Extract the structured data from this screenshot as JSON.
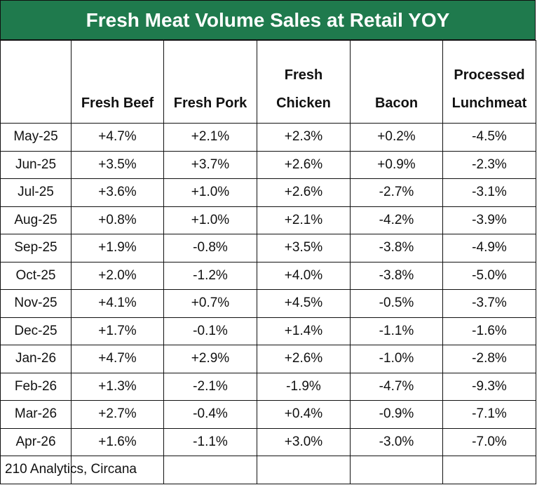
{
  "chart_data": {
    "type": "table",
    "title": "Fresh Meat Volume Sales at Retail YOY",
    "columns": [
      "",
      "Fresh Beef",
      "Fresh Pork",
      "Fresh Chicken",
      "Bacon",
      "Processed Lunchmeat"
    ],
    "rows": [
      {
        "month": "May-25",
        "values": [
          "+4.7%",
          "+2.1%",
          "+2.3%",
          "+0.2%",
          "-4.5%"
        ]
      },
      {
        "month": "Jun-25",
        "values": [
          "+3.5%",
          "+3.7%",
          "+2.6%",
          "+0.9%",
          "-2.3%"
        ]
      },
      {
        "month": "Jul-25",
        "values": [
          "+3.6%",
          "+1.0%",
          "+2.6%",
          "-2.7%",
          "-3.1%"
        ]
      },
      {
        "month": "Aug-25",
        "values": [
          "+0.8%",
          "+1.0%",
          "+2.1%",
          "-4.2%",
          "-3.9%"
        ]
      },
      {
        "month": "Sep-25",
        "values": [
          "+1.9%",
          "-0.8%",
          "+3.5%",
          "-3.8%",
          "-4.9%"
        ]
      },
      {
        "month": "Oct-25",
        "values": [
          "+2.0%",
          "-1.2%",
          "+4.0%",
          "-3.8%",
          "-5.0%"
        ]
      },
      {
        "month": "Nov-25",
        "values": [
          "+4.1%",
          "+0.7%",
          "+4.5%",
          "-0.5%",
          "-3.7%"
        ]
      },
      {
        "month": "Dec-25",
        "values": [
          "+1.7%",
          "-0.1%",
          "+1.4%",
          "-1.1%",
          "-1.6%"
        ]
      },
      {
        "month": "Jan-26",
        "values": [
          "+4.7%",
          "+2.9%",
          "+2.6%",
          "-1.0%",
          "-2.8%"
        ]
      },
      {
        "month": "Feb-26",
        "values": [
          "+1.3%",
          "-2.1%",
          "-1.9%",
          "-4.7%",
          "-9.3%"
        ]
      },
      {
        "month": "Mar-26",
        "values": [
          "+2.7%",
          "-0.4%",
          "+0.4%",
          "-0.9%",
          "-7.1%"
        ]
      },
      {
        "month": "Apr-26",
        "values": [
          "+1.6%",
          "-1.1%",
          "+3.0%",
          "-3.0%",
          "-7.0%"
        ]
      }
    ],
    "source": "210 Analytics, Circana",
    "colors": {
      "title_background": "#1f7a4d",
      "title_text": "#ffffff"
    }
  }
}
